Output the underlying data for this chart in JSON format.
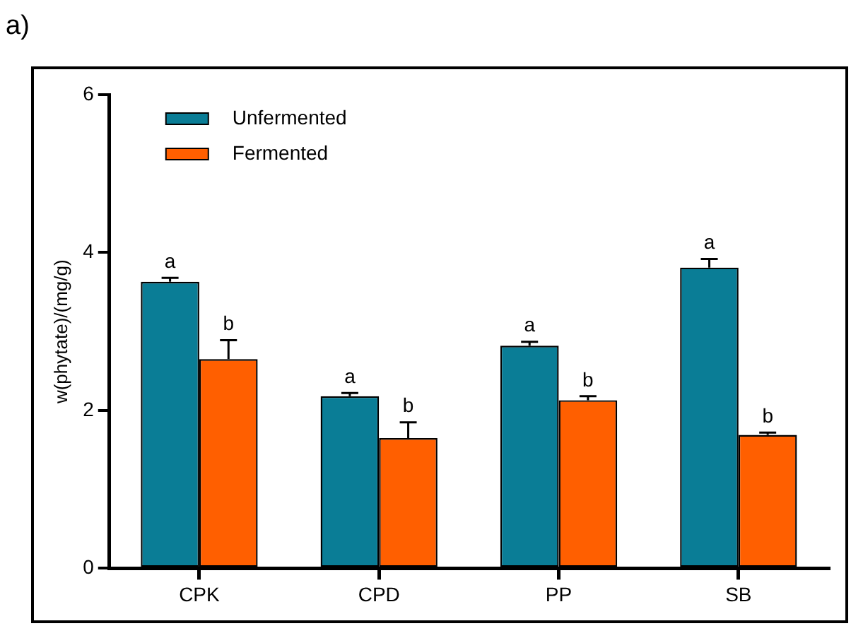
{
  "chart_data": {
    "type": "bar",
    "title": "a)",
    "ylabel": "w(phytate)/(mg/g)",
    "categories": [
      "CPK",
      "CPD",
      "PP",
      "SB"
    ],
    "series": [
      {
        "name": "Unfermented",
        "color": "#0a7d96",
        "values": [
          3.63,
          2.18,
          2.82,
          3.81
        ],
        "errors": [
          [
            3.63,
            3.68
          ],
          [
            2.18,
            2.22
          ],
          [
            2.82,
            2.87
          ],
          [
            3.81,
            3.92
          ]
        ]
      },
      {
        "name": "Fermented",
        "color": "#ff5f00",
        "values": [
          2.65,
          1.65,
          2.13,
          1.69
        ],
        "errors": [
          [
            2.65,
            2.89
          ],
          [
            1.65,
            1.85
          ],
          [
            2.13,
            2.18
          ],
          [
            1.69,
            1.72
          ]
        ]
      }
    ],
    "ylim": [
      0,
      6
    ],
    "yticks": [
      0,
      2,
      4,
      6
    ],
    "grid": false,
    "legend": "top left",
    "annotations": [
      {
        "text": "a",
        "x": "CPK",
        "y": 3.63
      },
      {
        "text": "b",
        "x": "CPK",
        "y": 2.65
      },
      {
        "text": "a",
        "x": "CPD",
        "y": 2.18
      },
      {
        "text": "b",
        "x": "CPD",
        "y": 1.65
      },
      {
        "text": "a",
        "x": "PP",
        "y": 2.82
      },
      {
        "text": "b",
        "x": "PP",
        "y": 2.13
      },
      {
        "text": "a",
        "x": "SB",
        "y": 3.81
      },
      {
        "text": "b",
        "x": "SB",
        "y": 1.69
      }
    ]
  }
}
